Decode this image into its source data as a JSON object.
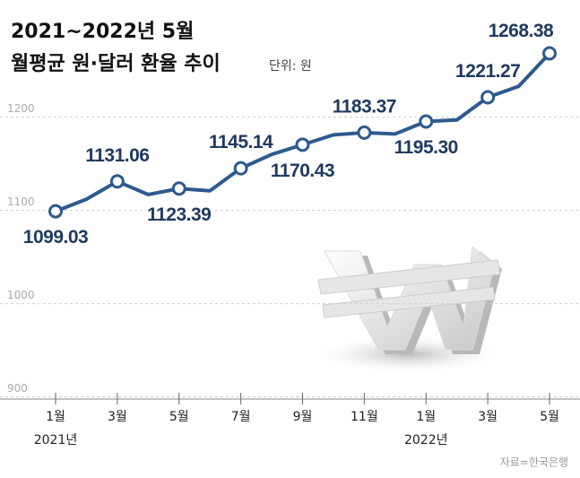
{
  "chart_data": {
    "type": "line",
    "title": "2021~2022년 5월",
    "subtitle": "월평균 원·달러 환율 추이",
    "unit": "단위: 원",
    "source": "자료=한국은행",
    "categories": [
      "1월",
      null,
      "3월",
      null,
      "5월",
      null,
      "7월",
      null,
      "9월",
      null,
      "11월",
      null,
      "1월",
      null,
      "3월",
      null,
      "5월"
    ],
    "category_years": [
      "2021년",
      null,
      null,
      null,
      null,
      null,
      null,
      null,
      null,
      null,
      null,
      null,
      "2022년",
      null,
      null,
      null,
      null
    ],
    "series": [
      {
        "name": "월평균 원·달러 환율",
        "color": "#2d5a8e",
        "values": [
          1099.03,
          1112,
          1131.06,
          1117,
          1123.39,
          1121,
          1145.14,
          1160,
          1170.43,
          1181,
          1183.37,
          1182,
          1195.3,
          1197,
          1221.27,
          1233,
          1268.38
        ],
        "value_labels": [
          "1099.03",
          null,
          "1131.06",
          null,
          "1123.39",
          null,
          "1145.14",
          null,
          "1170.43",
          null,
          "1183.37",
          null,
          "1195.30",
          null,
          "1221.27",
          null,
          "1268.38"
        ]
      }
    ],
    "ylim": [
      890,
      1320
    ],
    "yticks": [
      900,
      1000,
      1100,
      1200
    ],
    "grid": true
  }
}
